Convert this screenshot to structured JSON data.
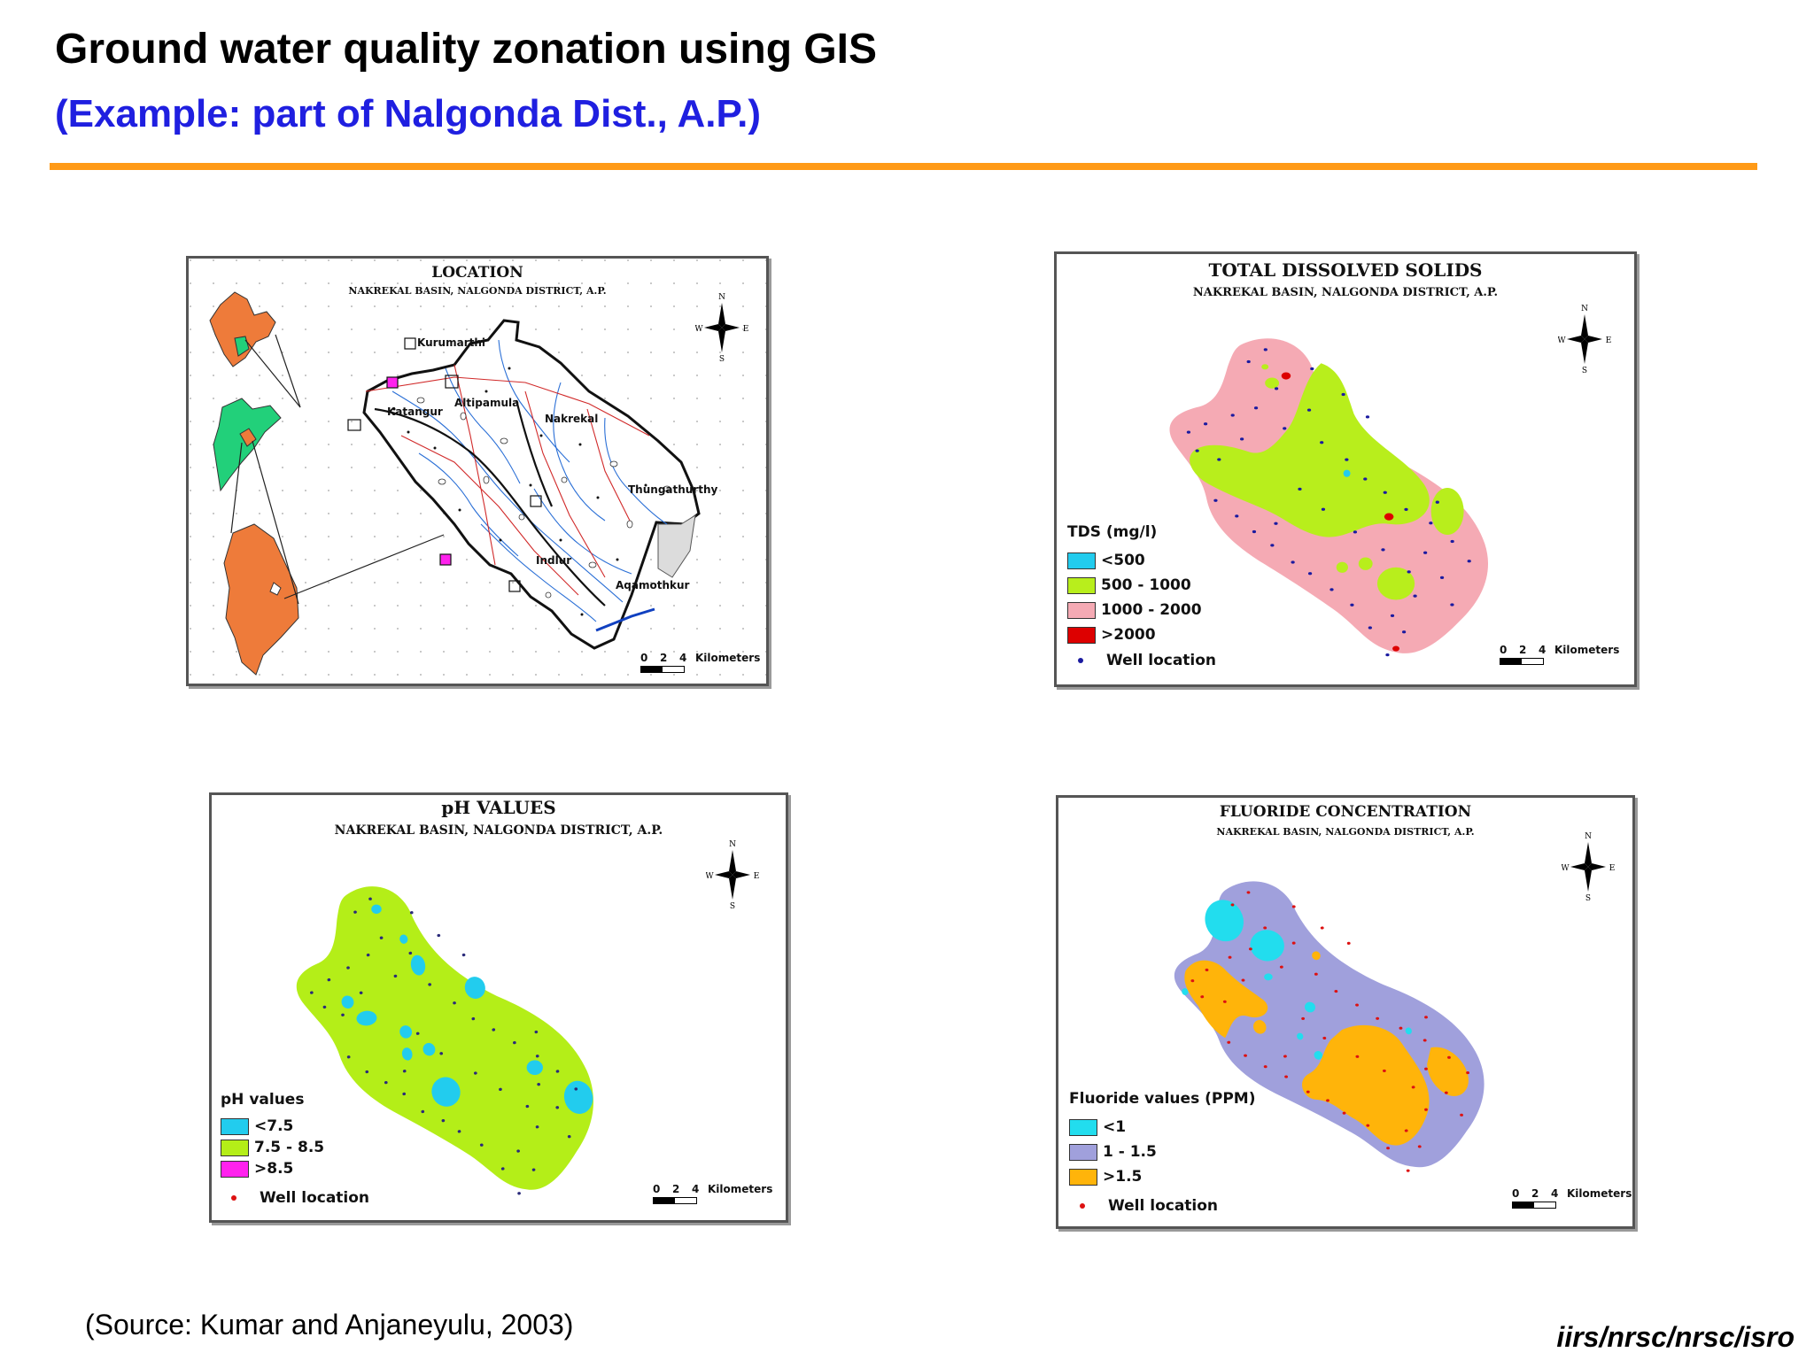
{
  "slide": {
    "title": "Ground water quality zonation using GIS",
    "subtitle": "(Example: part of Nalgonda Dist., A.P.)",
    "source": "(Source: Kumar and Anjaneyulu, 2003)",
    "credit": "iirs/nrsc/nrsc/isro",
    "colors": {
      "subtitle": "#1f1fe0",
      "rule": "#ff9a17"
    }
  },
  "compass": {
    "n": "N",
    "s": "S",
    "e": "E",
    "w": "W"
  },
  "scale": {
    "ticks": [
      "0",
      "2",
      "4"
    ],
    "unit": "Kilometers"
  },
  "panels": {
    "location": {
      "title": "LOCATION",
      "subtitle": "NAKREKAL BASIN, NALGONDA DISTRICT, A.P.",
      "places": [
        "Kurumarthi",
        "Altipamula",
        "Katangur",
        "Nakrekal",
        "Thungathurthy",
        "Indlur",
        "Aqamothkur"
      ],
      "colors": {
        "india": "#ee7b3a",
        "state": "#22d07a",
        "district": "#ee7b3a"
      }
    },
    "tds": {
      "title": "TOTAL DISSOLVED SOLIDS",
      "subtitle": "NAKREKAL BASIN, NALGONDA DISTRICT, A.P.",
      "legend_title": "TDS (mg/l)",
      "classes": [
        {
          "label": "<500",
          "color": "#22ccee"
        },
        {
          "label": "500 - 1000",
          "color": "#b8ee1c"
        },
        {
          "label": "1000 - 2000",
          "color": "#f5aab4"
        },
        {
          "label": ">2000",
          "color": "#dd0000"
        }
      ],
      "well_label": "Well location",
      "well_color": "#1a1aa0"
    },
    "ph": {
      "title": "pH VALUES",
      "subtitle": "NAKREKAL BASIN, NALGONDA DISTRICT, A.P.",
      "legend_title": "pH values",
      "classes": [
        {
          "label": "<7.5",
          "color": "#22ccee"
        },
        {
          "label": "7.5 - 8.5",
          "color": "#b4ee18"
        },
        {
          "label": ">8.5",
          "color": "#ff22ee"
        }
      ],
      "well_label": "Well location",
      "well_color": "#dd1111"
    },
    "fluoride": {
      "title": "FLUORIDE CONCENTRATION",
      "subtitle": "NAKREKAL BASIN, NALGONDA DISTRICT, A.P.",
      "legend_title": "Fluoride values (PPM)",
      "classes": [
        {
          "label": "<1",
          "color": "#22ddee"
        },
        {
          "label": "1 - 1.5",
          "color": "#a0a0dc"
        },
        {
          "label": ">1.5",
          "color": "#ffb40a"
        }
      ],
      "well_label": "Well location",
      "well_color": "#dd1111"
    }
  }
}
